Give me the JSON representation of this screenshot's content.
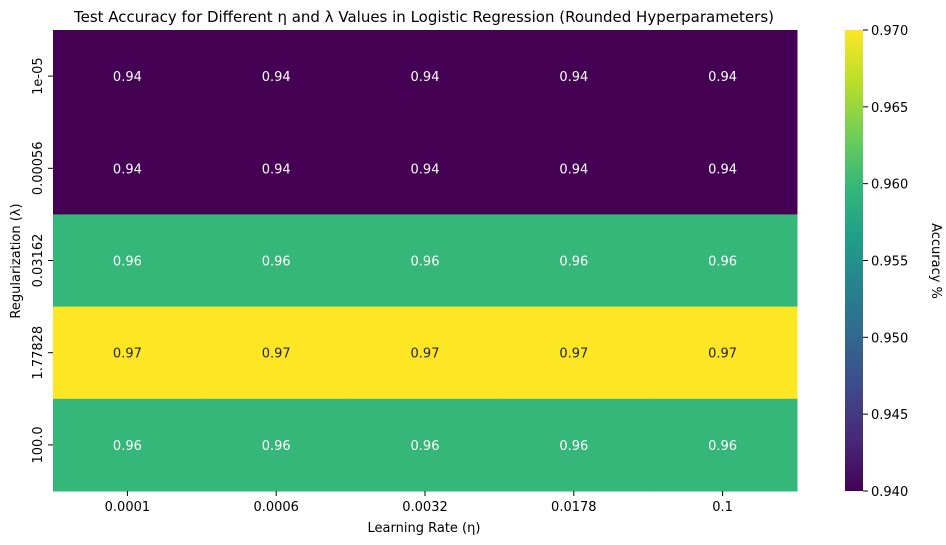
{
  "chart_data": {
    "type": "heatmap",
    "title": "Test Accuracy for Different η and λ Values in Logistic Regression (Rounded Hyperparameters)",
    "xlabel": "Learning Rate (η)",
    "ylabel": "Regularization (λ)",
    "x_categories": [
      "0.0001",
      "0.0006",
      "0.0032",
      "0.0178",
      "0.1"
    ],
    "y_categories": [
      "1e-05",
      "0.00056",
      "0.03162",
      "1.77828",
      "100.0"
    ],
    "values": [
      [
        0.94,
        0.94,
        0.94,
        0.94,
        0.94
      ],
      [
        0.94,
        0.94,
        0.94,
        0.94,
        0.94
      ],
      [
        0.96,
        0.96,
        0.96,
        0.96,
        0.96
      ],
      [
        0.97,
        0.97,
        0.97,
        0.97,
        0.97
      ],
      [
        0.96,
        0.96,
        0.96,
        0.96,
        0.96
      ]
    ],
    "colormap": "viridis",
    "colorbar": {
      "label": "Accuracy %",
      "range": [
        0.94,
        0.97
      ],
      "ticks": [
        "0.940",
        "0.945",
        "0.950",
        "0.955",
        "0.960",
        "0.965",
        "0.970"
      ]
    },
    "cell_colors": {
      "0.94": "#440154",
      "0.96": "#35b779",
      "0.97": "#fde725"
    },
    "annotation_text_colors": {
      "dark_cell": "#ffffff",
      "light_cell": "#262626"
    }
  }
}
